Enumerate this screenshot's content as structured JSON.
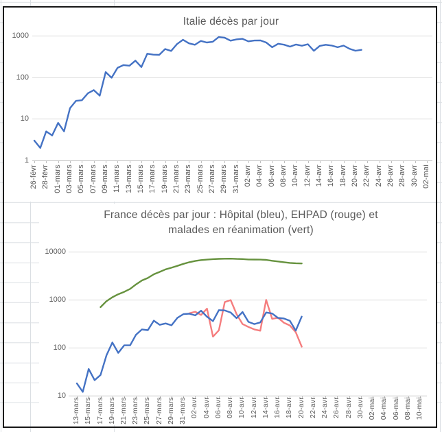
{
  "accent_colors": {
    "blue": "#4472C4",
    "red": "#F57D7E",
    "green": "#66923E",
    "gridline": "#D9D9D9",
    "axis_text": "#595959"
  },
  "chart_data": [
    {
      "type": "line",
      "title": "Italie décès par jour",
      "y_scale": "log",
      "y_ticks": [
        1,
        10,
        100,
        1000
      ],
      "x_tick_labels": [
        "26-févr",
        "28-févr",
        "01-mars",
        "03-mars",
        "05-mars",
        "07-mars",
        "09-mars",
        "11-mars",
        "13-mars",
        "15-mars",
        "17-mars",
        "19-mars",
        "21-mars",
        "23-mars",
        "25-mars",
        "27-mars",
        "29-mars",
        "31-mars",
        "02-avr",
        "04-avr",
        "06-avr",
        "08-avr",
        "10-avr",
        "12-avr",
        "14-avr",
        "16-avr",
        "18-avr",
        "20-avr",
        "22-avr",
        "24-avr",
        "26-avr",
        "28-avr",
        "30-avr",
        "02-mai"
      ],
      "x_unit": "1 day per point, tick labels every 2 days",
      "series": [
        {
          "name": "Italie décès par jour",
          "color": "#4472C4",
          "start_day": 0,
          "values": [
            3,
            2,
            5,
            4,
            8,
            5,
            18,
            27,
            28,
            41,
            49,
            36,
            133,
            97,
            168,
            196,
            189,
            250,
            175,
            368,
            349,
            345,
            475,
            427,
            627,
            793,
            651,
            601,
            743,
            683,
            712,
            919,
            889,
            756,
            812,
            837,
            727,
            760,
            766,
            681,
            525,
            636,
            604,
            542,
            610,
            570,
            619,
            431,
            566,
            602,
            578,
            525,
            575,
            482,
            433,
            454
          ]
        }
      ]
    },
    {
      "type": "line",
      "title": "France décès par jour : Hôpital  (bleu),  EHPAD (rouge) et malades en réanimation (vert)",
      "y_scale": "log",
      "y_ticks": [
        10,
        100,
        1000,
        10000
      ],
      "x_tick_labels": [
        "13-mars",
        "15-mars",
        "17-mars",
        "19-mars",
        "21-mars",
        "23-mars",
        "25-mars",
        "27-mars",
        "29-mars",
        "31-mars",
        "02-avr",
        "04-avr",
        "06-avr",
        "08-avr",
        "10-avr",
        "12-avr",
        "14-avr",
        "16-avr",
        "18-avr",
        "20-avr",
        "22-avr",
        "24-avr",
        "26-avr",
        "28-avr",
        "30-avr",
        "02-mai",
        "04-mai",
        "06-mai",
        "08-mai",
        "10-mai"
      ],
      "x_unit": "1 day per point, tick labels every 2 days",
      "series": [
        {
          "name": "EHPAD",
          "color": "#F57D7E",
          "start_day": 19,
          "values": [
            520,
            560,
            480,
            650,
            170,
            230,
            890,
            980,
            500,
            310,
            270,
            240,
            225,
            990,
            400,
            420,
            330,
            290,
            210,
            105
          ]
        },
        {
          "name": "Hôpital",
          "color": "#4472C4",
          "start_day": 0,
          "values": [
            18,
            12,
            36,
            21,
            27,
            69,
            128,
            78,
            112,
            112,
            186,
            240,
            231,
            365,
            299,
            319,
            292,
            418,
            499,
            509,
            471,
            588,
            441,
            357,
            605,
            597,
            541,
            412,
            554,
            345,
            310,
            335,
            541,
            514,
            417,
            405,
            364,
            227,
            444
          ]
        },
        {
          "name": "malades en réanimation",
          "color": "#66923E",
          "start_day": 4,
          "values": [
            699,
            931,
            1122,
            1297,
            1453,
            1674,
            2080,
            2516,
            2827,
            3375,
            3787,
            4273,
            4632,
            5056,
            5565,
            6017,
            6399,
            6662,
            6838,
            6978,
            7072,
            7131,
            7148,
            7066,
            7004,
            6883,
            6845,
            6821,
            6730,
            6457,
            6248,
            6027,
            5833,
            5744,
            5683
          ]
        }
      ]
    }
  ]
}
